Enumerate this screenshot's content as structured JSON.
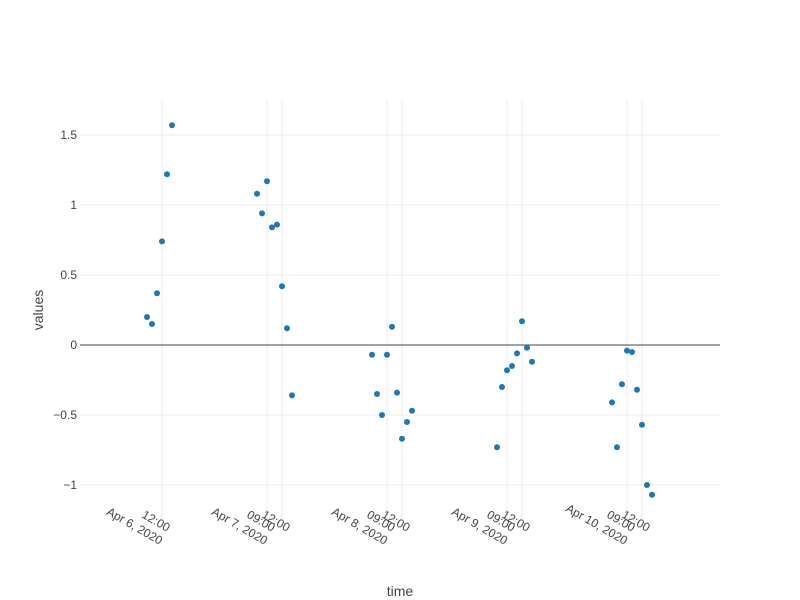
{
  "chart_data": {
    "type": "scatter",
    "xlabel": "time",
    "ylabel": "values",
    "grid": true,
    "marker_color": "#1f77b4",
    "zero_line_color": "#444444",
    "grid_color": "#eeeeee",
    "y_ticks": [
      {
        "value": -1,
        "label": "−1"
      },
      {
        "value": -0.5,
        "label": "−0.5"
      },
      {
        "value": 0,
        "label": "0"
      },
      {
        "value": 0.5,
        "label": "0.5"
      },
      {
        "value": 1,
        "label": "1"
      },
      {
        "value": 1.5,
        "label": "1.5"
      }
    ],
    "x_ticks": [
      {
        "value": "2020-04-06 12:00",
        "time": "12:00",
        "date": "Apr 6, 2020"
      },
      {
        "value": "2020-04-07 09:00",
        "time": "09:00",
        "date": "Apr 7, 2020"
      },
      {
        "value": "2020-04-07 12:00",
        "time": "12:00",
        "date": ""
      },
      {
        "value": "2020-04-08 09:00",
        "time": "09:00",
        "date": "Apr 8, 2020"
      },
      {
        "value": "2020-04-08 12:00",
        "time": "12:00",
        "date": ""
      },
      {
        "value": "2020-04-09 09:00",
        "time": "09:00",
        "date": "Apr 9, 2020"
      },
      {
        "value": "2020-04-09 12:00",
        "time": "12:00",
        "date": ""
      },
      {
        "value": "2020-04-10 09:00",
        "time": "09:00",
        "date": "Apr 10, 2020"
      },
      {
        "value": "2020-04-10 12:00",
        "time": "12:00",
        "date": ""
      }
    ],
    "points": [
      {
        "x": "2020-04-06 09:00",
        "y": 0.2
      },
      {
        "x": "2020-04-06 10:00",
        "y": 0.15
      },
      {
        "x": "2020-04-06 11:00",
        "y": 0.37
      },
      {
        "x": "2020-04-06 12:00",
        "y": 0.74
      },
      {
        "x": "2020-04-06 13:00",
        "y": 1.22
      },
      {
        "x": "2020-04-06 14:00",
        "y": 1.57
      },
      {
        "x": "2020-04-07 07:00",
        "y": 1.08
      },
      {
        "x": "2020-04-07 08:00",
        "y": 0.94
      },
      {
        "x": "2020-04-07 09:00",
        "y": 1.17
      },
      {
        "x": "2020-04-07 10:00",
        "y": 0.84
      },
      {
        "x": "2020-04-07 11:00",
        "y": 0.86
      },
      {
        "x": "2020-04-07 12:00",
        "y": 0.42
      },
      {
        "x": "2020-04-07 13:00",
        "y": 0.12
      },
      {
        "x": "2020-04-07 14:00",
        "y": -0.36
      },
      {
        "x": "2020-04-08 06:00",
        "y": -0.07
      },
      {
        "x": "2020-04-08 07:00",
        "y": -0.35
      },
      {
        "x": "2020-04-08 08:00",
        "y": -0.5
      },
      {
        "x": "2020-04-08 09:00",
        "y": -0.07
      },
      {
        "x": "2020-04-08 10:00",
        "y": 0.13
      },
      {
        "x": "2020-04-08 11:00",
        "y": -0.34
      },
      {
        "x": "2020-04-08 12:00",
        "y": -0.67
      },
      {
        "x": "2020-04-08 13:00",
        "y": -0.55
      },
      {
        "x": "2020-04-08 14:00",
        "y": -0.47
      },
      {
        "x": "2020-04-09 07:00",
        "y": -0.73
      },
      {
        "x": "2020-04-09 08:00",
        "y": -0.3
      },
      {
        "x": "2020-04-09 09:00",
        "y": -0.18
      },
      {
        "x": "2020-04-09 10:00",
        "y": -0.15
      },
      {
        "x": "2020-04-09 11:00",
        "y": -0.06
      },
      {
        "x": "2020-04-09 12:00",
        "y": 0.17
      },
      {
        "x": "2020-04-09 13:00",
        "y": -0.02
      },
      {
        "x": "2020-04-09 14:00",
        "y": -0.12
      },
      {
        "x": "2020-04-10 06:00",
        "y": -0.41
      },
      {
        "x": "2020-04-10 07:00",
        "y": -0.73
      },
      {
        "x": "2020-04-10 08:00",
        "y": -0.28
      },
      {
        "x": "2020-04-10 09:00",
        "y": -0.04
      },
      {
        "x": "2020-04-10 10:00",
        "y": -0.05
      },
      {
        "x": "2020-04-10 11:00",
        "y": -0.32
      },
      {
        "x": "2020-04-10 12:00",
        "y": -0.57
      },
      {
        "x": "2020-04-10 13:00",
        "y": -1.0
      },
      {
        "x": "2020-04-10 14:00",
        "y": -1.07
      }
    ]
  }
}
